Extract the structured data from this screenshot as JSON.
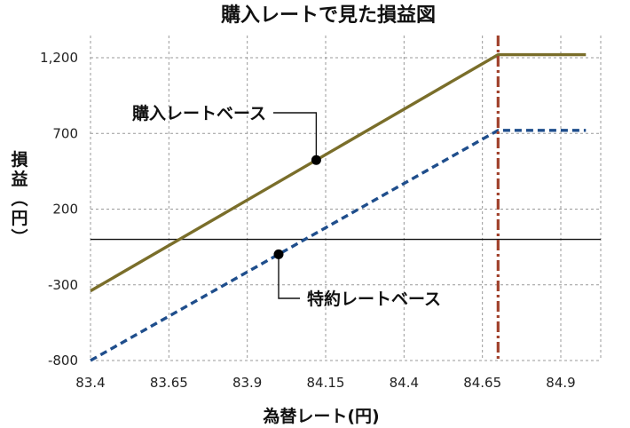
{
  "chart_data": {
    "type": "line",
    "title": "購入レートで見た損益図",
    "xlabel": "為替レート(円)",
    "ylabel": "損益(円)",
    "xlim": [
      83.4,
      84.98
    ],
    "ylim": [
      -800,
      1400
    ],
    "x_ticks": [
      83.4,
      83.65,
      83.9,
      84.15,
      84.4,
      84.65,
      84.9
    ],
    "x_tick_labels": [
      "83.4",
      "83.65",
      "83.9",
      "84.15",
      "84.4",
      "84.65",
      "84.9"
    ],
    "y_ticks": [
      1200,
      700,
      200,
      -300,
      -800
    ],
    "y_tick_labels": [
      "1,200",
      "700",
      "200",
      "-300",
      "-800"
    ],
    "negative_tick_color": "#c0142c",
    "grid": true,
    "series": [
      {
        "name": "購入レートベース",
        "color": "#7a6e2a",
        "style": "solid",
        "points": [
          [
            83.4,
            -340
          ],
          [
            84.7,
            1220
          ],
          [
            84.98,
            1220
          ]
        ]
      },
      {
        "name": "特約レートベース",
        "color": "#1f4e8c",
        "style": "dashed",
        "points": [
          [
            83.4,
            -800
          ],
          [
            84.7,
            720
          ],
          [
            84.98,
            720
          ]
        ]
      }
    ],
    "hline": {
      "y": 0,
      "color": "#111111"
    },
    "vline": {
      "x": 84.7,
      "color": "#a0412c",
      "style": "dash-dot"
    },
    "annotations": [
      {
        "text": "購入レートベース",
        "series": 0,
        "x": 84.12
      },
      {
        "text": "特約レートベース",
        "series": 1,
        "x": 84.0
      }
    ]
  }
}
